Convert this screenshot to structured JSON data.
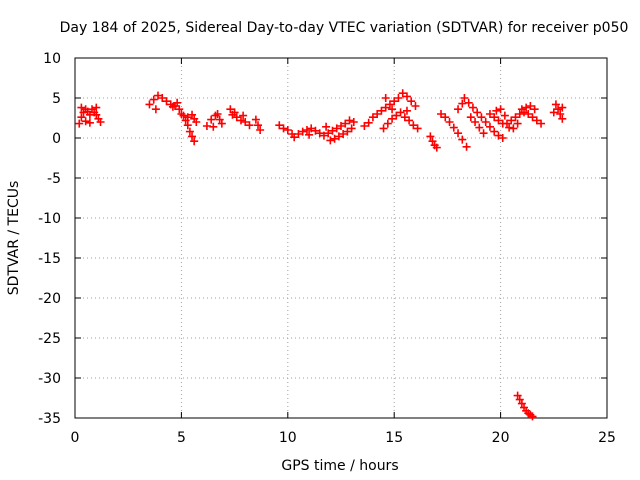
{
  "chart_data": {
    "type": "scatter",
    "title": "Day 184 of 2025, Sidereal Day-to-day VTEC variation (SDTVAR) for receiver p050",
    "xlabel": "GPS time / hours",
    "ylabel": "SDTVAR / TECUs",
    "xlim": [
      0,
      25
    ],
    "ylim": [
      -35,
      10
    ],
    "xticks": [
      0,
      5,
      10,
      15,
      20,
      25
    ],
    "yticks": [
      -35,
      -30,
      -25,
      -20,
      -15,
      -10,
      -5,
      0,
      5,
      10
    ],
    "grid": true,
    "marker": "+",
    "color": "#ff0000",
    "series": [
      {
        "name": "SDTVAR",
        "segments": [
          [
            [
              0.2,
              1.8
            ],
            [
              0.3,
              2.6
            ],
            [
              0.4,
              3.2
            ],
            [
              0.5,
              3.6
            ],
            [
              0.6,
              3.3
            ],
            [
              0.7,
              2.9
            ],
            [
              0.8,
              3.6
            ],
            [
              0.9,
              3.2
            ],
            [
              1.0,
              2.9
            ],
            [
              1.1,
              2.4
            ],
            [
              1.2,
              2.0
            ],
            [
              0.3,
              3.8
            ],
            [
              0.5,
              2.1
            ],
            [
              0.7,
              1.9
            ],
            [
              1.0,
              3.8
            ]
          ],
          [
            [
              3.5,
              4.2
            ],
            [
              3.7,
              4.8
            ],
            [
              3.9,
              5.3
            ],
            [
              4.1,
              5.0
            ],
            [
              4.3,
              4.6
            ],
            [
              4.5,
              4.2
            ],
            [
              4.7,
              4.0
            ],
            [
              4.9,
              3.6
            ],
            [
              5.0,
              3.0
            ],
            [
              4.6,
              3.9
            ],
            [
              4.8,
              4.4
            ],
            [
              3.8,
              3.6
            ]
          ],
          [
            [
              5.1,
              2.8
            ],
            [
              5.2,
              2.2
            ],
            [
              5.3,
              1.6
            ],
            [
              5.4,
              0.8
            ],
            [
              5.5,
              0.2
            ],
            [
              5.6,
              -0.4
            ],
            [
              5.3,
              2.6
            ],
            [
              5.5,
              2.9
            ],
            [
              5.6,
              2.4
            ],
            [
              5.7,
              2.0
            ]
          ],
          [
            [
              6.2,
              1.5
            ],
            [
              6.4,
              2.3
            ],
            [
              6.6,
              2.8
            ],
            [
              6.8,
              2.3
            ],
            [
              6.9,
              1.8
            ],
            [
              6.5,
              1.4
            ],
            [
              6.7,
              3.0
            ]
          ],
          [
            [
              7.3,
              3.6
            ],
            [
              7.4,
              2.9
            ],
            [
              7.6,
              2.6
            ],
            [
              7.8,
              2.2
            ],
            [
              8.0,
              2.0
            ],
            [
              8.2,
              1.6
            ],
            [
              7.9,
              2.8
            ],
            [
              7.5,
              3.2
            ]
          ],
          [
            [
              8.5,
              2.3
            ],
            [
              8.6,
              1.6
            ],
            [
              8.7,
              1.0
            ]
          ],
          [
            [
              9.6,
              1.6
            ],
            [
              9.8,
              1.2
            ],
            [
              10.0,
              1.0
            ],
            [
              10.2,
              0.5
            ],
            [
              10.3,
              0.1
            ],
            [
              10.5,
              0.5
            ],
            [
              10.7,
              0.8
            ],
            [
              10.9,
              1.0
            ],
            [
              11.1,
              1.2
            ],
            [
              11.3,
              0.9
            ],
            [
              11.5,
              0.6
            ],
            [
              11.7,
              0.3
            ],
            [
              11.9,
              0.6
            ],
            [
              12.1,
              0.9
            ],
            [
              12.3,
              1.2
            ],
            [
              12.5,
              1.5
            ],
            [
              12.7,
              1.8
            ],
            [
              12.9,
              2.2
            ],
            [
              13.1,
              2.0
            ],
            [
              12.0,
              -0.3
            ],
            [
              12.2,
              -0.1
            ],
            [
              12.4,
              0.2
            ],
            [
              12.6,
              0.5
            ],
            [
              12.8,
              0.8
            ],
            [
              13.0,
              1.2
            ],
            [
              11.0,
              0.4
            ],
            [
              11.8,
              1.4
            ]
          ],
          [
            [
              13.6,
              1.5
            ],
            [
              13.8,
              1.9
            ],
            [
              14.0,
              2.6
            ],
            [
              14.2,
              3.0
            ],
            [
              14.4,
              3.4
            ],
            [
              14.6,
              3.8
            ],
            [
              14.8,
              4.2
            ],
            [
              15.0,
              4.6
            ],
            [
              15.2,
              5.0
            ],
            [
              15.4,
              5.6
            ],
            [
              15.6,
              5.2
            ],
            [
              15.8,
              4.6
            ],
            [
              16.0,
              4.0
            ],
            [
              14.5,
              1.2
            ],
            [
              14.7,
              1.8
            ],
            [
              14.9,
              2.4
            ],
            [
              15.1,
              2.8
            ],
            [
              15.3,
              3.2
            ],
            [
              15.5,
              2.6
            ],
            [
              15.7,
              2.2
            ],
            [
              15.9,
              1.6
            ],
            [
              16.1,
              1.2
            ],
            [
              14.6,
              5.0
            ],
            [
              14.9,
              3.6
            ],
            [
              15.6,
              3.4
            ]
          ],
          [
            [
              16.7,
              0.2
            ],
            [
              16.8,
              -0.4
            ],
            [
              16.9,
              -0.9
            ],
            [
              17.0,
              -1.2
            ],
            [
              17.2,
              3.0
            ],
            [
              17.4,
              2.6
            ],
            [
              17.6,
              2.0
            ],
            [
              17.8,
              1.3
            ],
            [
              18.0,
              0.6
            ],
            [
              18.2,
              -0.2
            ],
            [
              18.4,
              -1.1
            ],
            [
              18.0,
              3.6
            ],
            [
              18.2,
              4.3
            ],
            [
              18.3,
              5.0
            ]
          ],
          [
            [
              18.5,
              4.4
            ],
            [
              18.7,
              3.8
            ],
            [
              18.9,
              3.2
            ],
            [
              19.1,
              2.6
            ],
            [
              19.3,
              2.0
            ],
            [
              19.5,
              1.4
            ],
            [
              19.7,
              0.8
            ],
            [
              19.9,
              0.3
            ],
            [
              20.1,
              0.0
            ],
            [
              18.6,
              2.6
            ],
            [
              18.8,
              2.0
            ],
            [
              19.0,
              1.3
            ],
            [
              19.2,
              0.6
            ]
          ],
          [
            [
              19.5,
              3.0
            ],
            [
              19.7,
              2.6
            ],
            [
              19.9,
              2.2
            ],
            [
              20.1,
              1.8
            ],
            [
              20.3,
              1.8
            ],
            [
              20.5,
              2.2
            ],
            [
              20.7,
              2.6
            ],
            [
              20.9,
              3.0
            ],
            [
              21.1,
              3.2
            ],
            [
              21.3,
              3.0
            ],
            [
              21.5,
              2.6
            ],
            [
              21.7,
              2.2
            ],
            [
              21.9,
              1.8
            ],
            [
              20.2,
              2.8
            ],
            [
              20.4,
              1.3
            ],
            [
              20.6,
              1.2
            ],
            [
              20.8,
              1.8
            ],
            [
              21.0,
              3.6
            ],
            [
              21.2,
              3.8
            ],
            [
              21.4,
              4.0
            ],
            [
              21.6,
              3.6
            ],
            [
              20.0,
              3.6
            ],
            [
              19.8,
              3.4
            ]
          ],
          [
            [
              22.6,
              4.2
            ],
            [
              22.7,
              3.6
            ],
            [
              22.8,
              3.0
            ],
            [
              22.9,
              2.4
            ],
            [
              22.9,
              3.8
            ],
            [
              22.5,
              3.2
            ]
          ],
          [
            [
              20.8,
              -32.2
            ],
            [
              20.9,
              -32.7
            ],
            [
              21.0,
              -33.2
            ],
            [
              21.1,
              -33.7
            ],
            [
              21.2,
              -34.1
            ],
            [
              21.3,
              -34.4
            ],
            [
              21.4,
              -34.6
            ],
            [
              21.5,
              -34.8
            ]
          ]
        ]
      }
    ]
  }
}
